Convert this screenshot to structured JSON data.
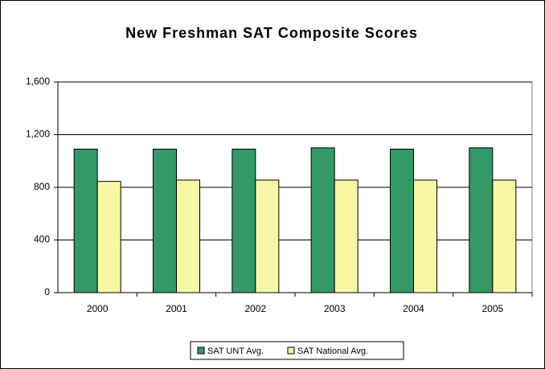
{
  "chart_data": {
    "type": "bar",
    "title": "New Freshman SAT Composite Scores",
    "categories": [
      "2000",
      "2001",
      "2002",
      "2003",
      "2004",
      "2005"
    ],
    "series": [
      {
        "name": "SAT UNT Avg.",
        "color": "#339966",
        "values": [
          1090,
          1090,
          1090,
          1100,
          1090,
          1100
        ]
      },
      {
        "name": "SAT National Avg.",
        "color": "#f7f7a6",
        "values": [
          845,
          855,
          855,
          855,
          855,
          855
        ]
      }
    ],
    "ylim": [
      0,
      1600
    ],
    "yticks": [
      0,
      400,
      800,
      {
        "value": 1200,
        "label": "1,200"
      },
      {
        "value": 1600,
        "label": "1,600"
      }
    ],
    "grid": true,
    "legend": "bottom"
  }
}
